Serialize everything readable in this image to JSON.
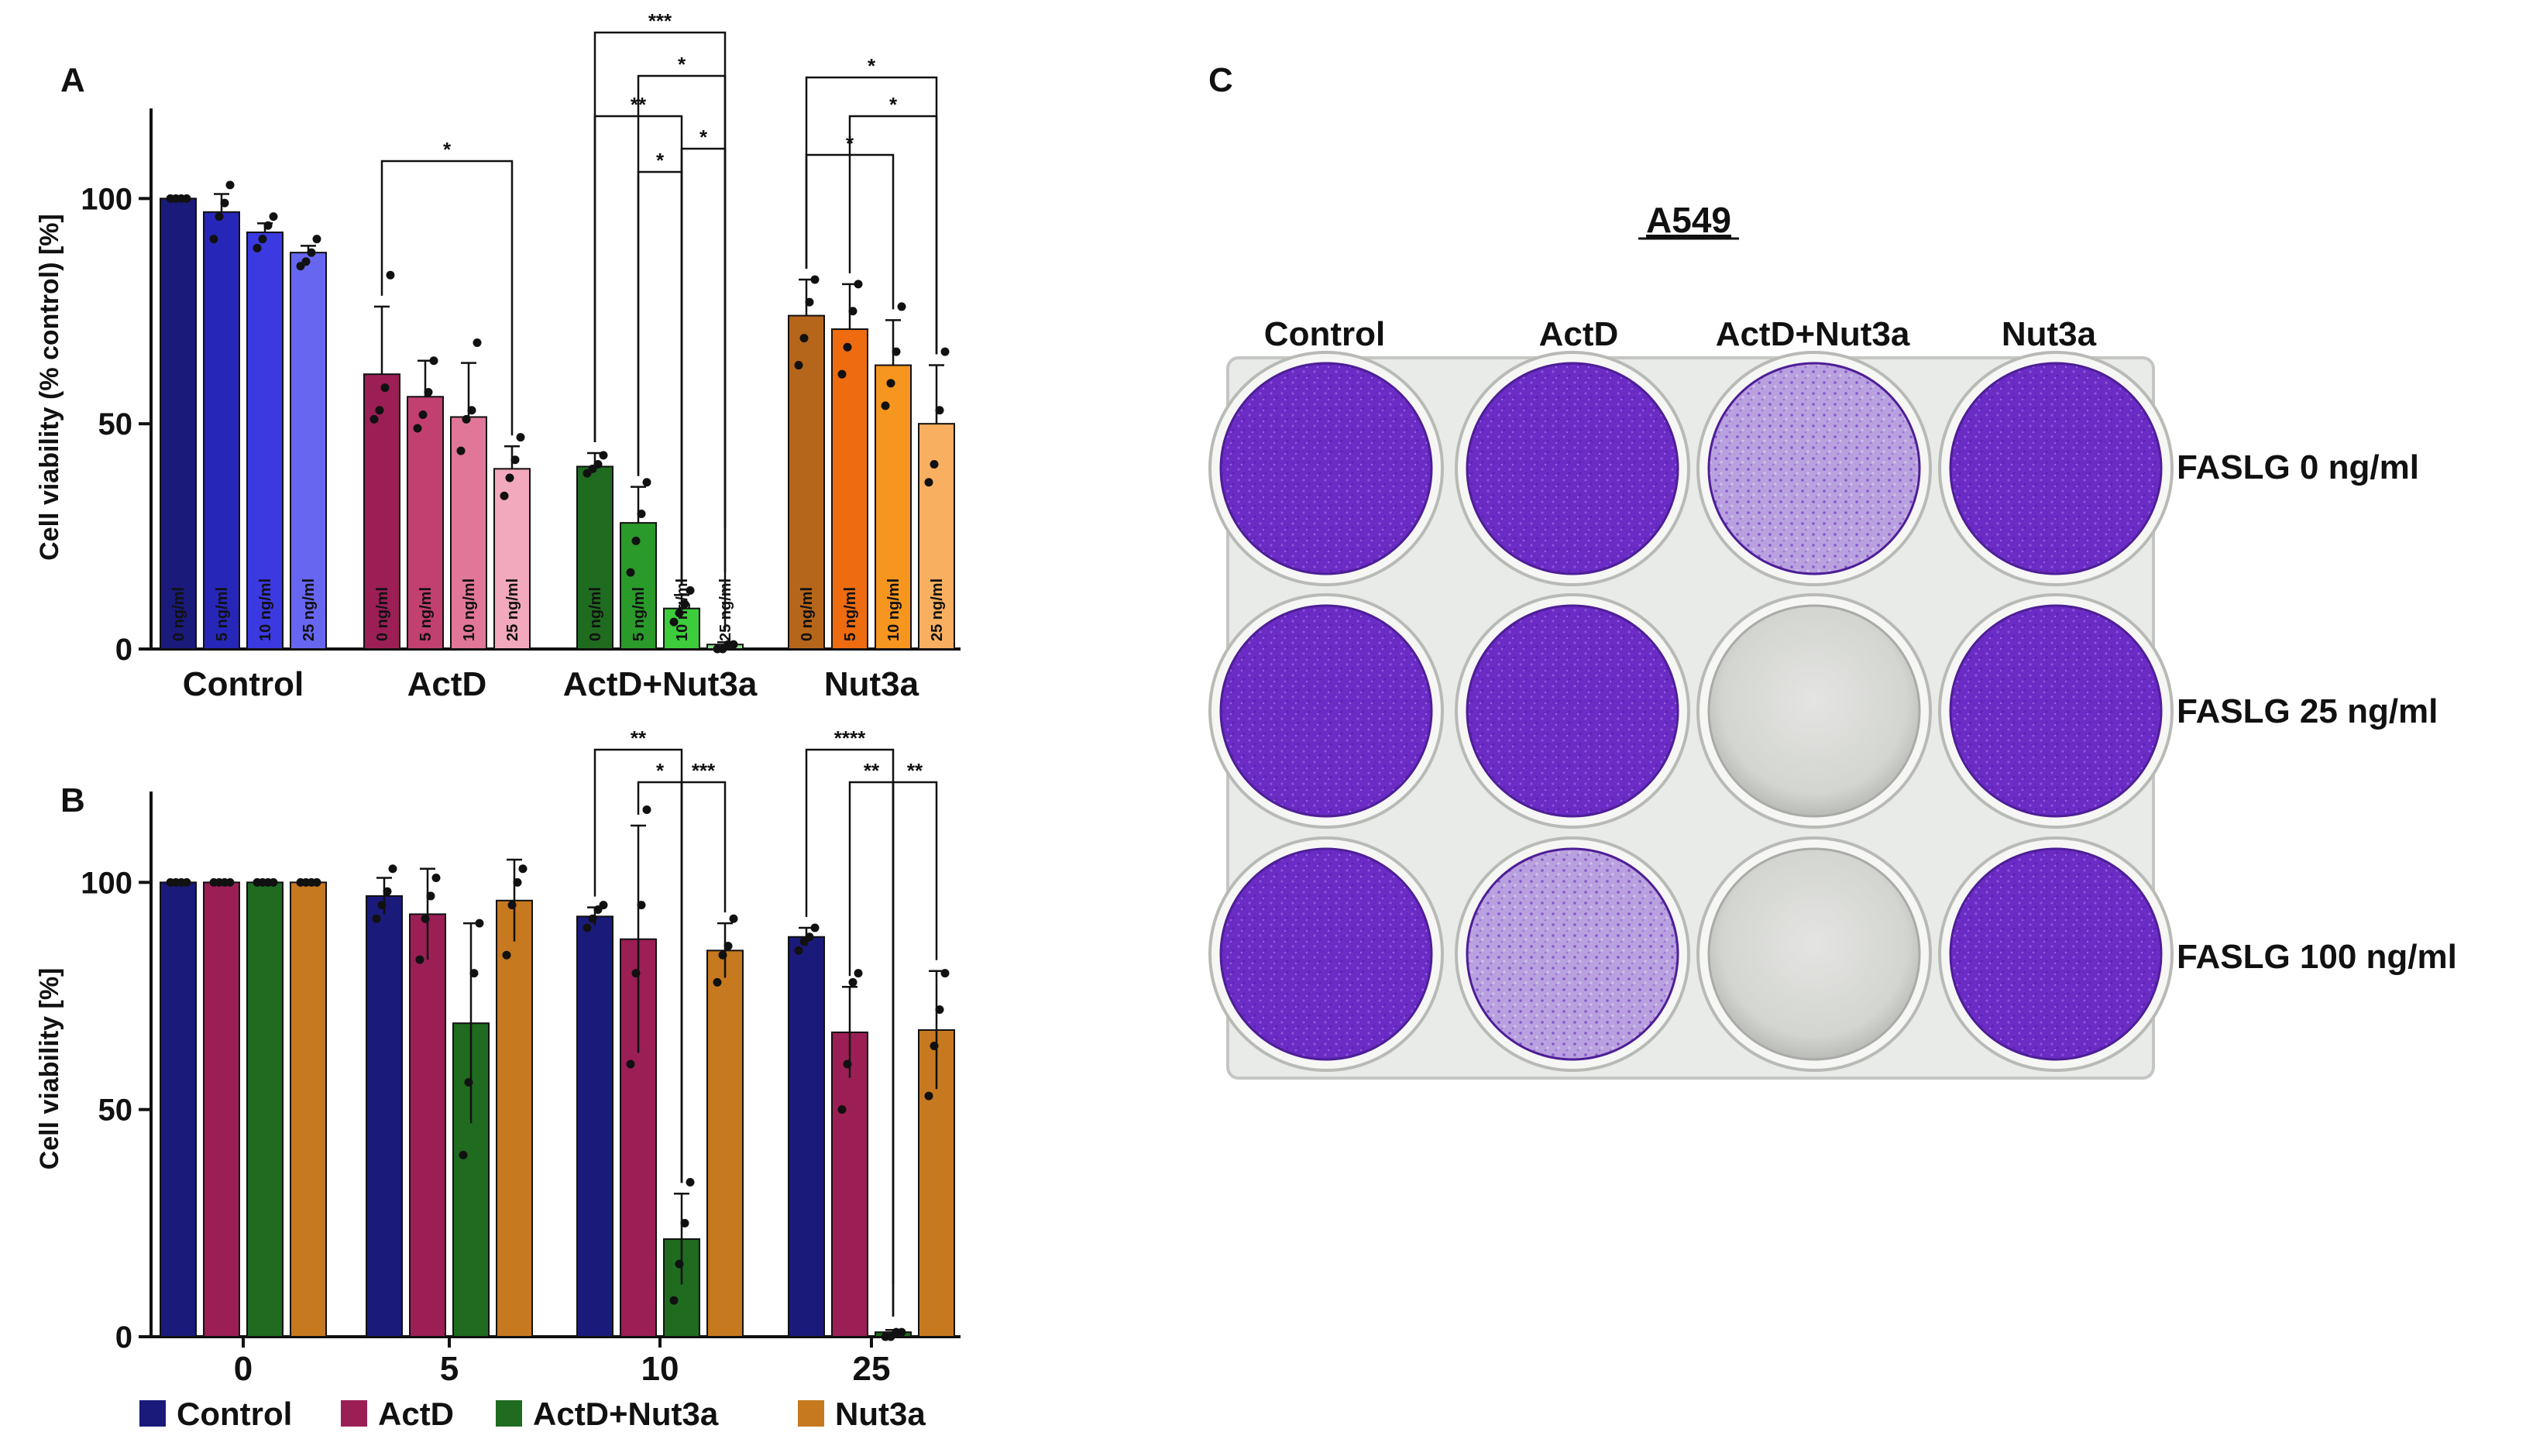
{
  "panel_labels": {
    "a": "A",
    "b": "B",
    "c": "C"
  },
  "colors": {
    "control": [
      "#1a1a7a",
      "#2626b8",
      "#3a3ae0",
      "#6666f0"
    ],
    "actd": [
      "#9b1f55",
      "#c2406f",
      "#e17798",
      "#f2a9bd"
    ],
    "actd_nut3a": [
      "#1f6b1f",
      "#2a9a2a",
      "#3ccc3c",
      "#8fe08f"
    ],
    "nut3a": [
      "#b5661a",
      "#ee6b10",
      "#f7961e",
      "#f8b060"
    ],
    "legend": [
      "#1a1a7a",
      "#9b1f55",
      "#1f6b1f",
      "#c7791f"
    ],
    "well_purple": "#6a2fc4",
    "well_light": "#a987d8",
    "well_clear": "#d8d9d6"
  },
  "chart_data": [
    {
      "panel": "A",
      "type": "bar",
      "ylabel": "Cell viability (% control) [%]",
      "ylim": [
        0,
        120
      ],
      "yticks": [
        "0",
        "50",
        "100"
      ],
      "groups": [
        "Control",
        "ActD",
        "ActD+Nut3a",
        "Nut3a"
      ],
      "bar_labels": [
        [
          "0 ng/ml",
          "5 ng/ml",
          "10 ng/ml",
          "25 ng/ml"
        ],
        [
          "0 ng/ml",
          "5 ng/ml",
          "10 ng/ml",
          "25 ng/ml"
        ],
        [
          "0 ng/ml",
          "5 ng/ml",
          "10 ng/ml",
          "25 ng/ml"
        ],
        [
          "0 ng/ml",
          "5 ng/ml",
          "10 ng/ml",
          "25 ng/ml"
        ]
      ],
      "values": [
        [
          100,
          97,
          92.5,
          88
        ],
        [
          61,
          56,
          51.5,
          40
        ],
        [
          40.5,
          28,
          9,
          1
        ],
        [
          74,
          71,
          63,
          50
        ]
      ],
      "errors": [
        [
          0,
          4,
          2,
          1.5
        ],
        [
          15,
          8,
          12,
          5
        ],
        [
          3,
          8,
          3,
          0.5
        ],
        [
          8,
          10,
          10,
          13
        ]
      ],
      "points": [
        [
          [
            100,
            100,
            100,
            100
          ],
          [
            91,
            96,
            99,
            103
          ],
          [
            89,
            91,
            94,
            96
          ],
          [
            85,
            86,
            88,
            91
          ]
        ],
        [
          [
            51,
            53,
            58,
            83
          ],
          [
            49,
            52,
            57,
            64
          ],
          [
            44,
            51,
            53,
            68
          ],
          [
            34,
            38,
            42,
            47
          ]
        ],
        [
          [
            39,
            40,
            41,
            43
          ],
          [
            17,
            24,
            30,
            37
          ],
          [
            6,
            8,
            10,
            13
          ],
          [
            0,
            0,
            1,
            1
          ]
        ],
        [
          [
            63,
            69,
            77,
            82
          ],
          [
            61,
            67,
            75,
            81
          ],
          [
            54,
            59,
            66,
            76
          ],
          [
            37,
            41,
            53,
            66
          ]
        ]
      ],
      "significance": [
        {
          "label": "*",
          "from": [
            1,
            0
          ],
          "to": [
            1,
            3
          ]
        },
        {
          "label": "***",
          "from": [
            2,
            0
          ],
          "to": [
            2,
            3
          ]
        },
        {
          "label": "*",
          "from": [
            2,
            1
          ],
          "to": [
            2,
            3
          ]
        },
        {
          "label": "**",
          "from": [
            2,
            0
          ],
          "to": [
            2,
            2
          ]
        },
        {
          "label": "*",
          "from": [
            2,
            1
          ],
          "to": [
            2,
            2
          ]
        },
        {
          "label": "*",
          "from": [
            2,
            2
          ],
          "to": [
            2,
            3
          ]
        },
        {
          "label": "*",
          "from": [
            3,
            0
          ],
          "to": [
            3,
            3
          ]
        },
        {
          "label": "*",
          "from": [
            3,
            1
          ],
          "to": [
            3,
            3
          ]
        },
        {
          "label": "*",
          "from": [
            3,
            0
          ],
          "to": [
            3,
            2
          ]
        }
      ]
    },
    {
      "panel": "B",
      "type": "bar",
      "ylabel": "Cell viability [%]",
      "ylim": [
        0,
        120
      ],
      "yticks": [
        "0",
        "50",
        "100"
      ],
      "categories": [
        "0",
        "5",
        "10",
        "25"
      ],
      "series": [
        {
          "name": "Control",
          "values": [
            100,
            97,
            92.5,
            88
          ],
          "errors": [
            0,
            4,
            2,
            2
          ]
        },
        {
          "name": "ActD",
          "values": [
            100,
            93,
            87.5,
            67
          ],
          "errors": [
            0,
            10,
            25,
            10
          ]
        },
        {
          "name": "ActD+Nut3a",
          "values": [
            100,
            69,
            21.5,
            1
          ],
          "errors": [
            0,
            22,
            10,
            0.5
          ]
        },
        {
          "name": "Nut3a",
          "values": [
            100,
            96,
            85,
            67.5
          ],
          "errors": [
            0,
            9,
            6,
            13
          ]
        }
      ],
      "points": [
        [
          [
            100,
            100,
            100,
            100
          ],
          [
            92,
            95,
            98,
            103
          ],
          [
            90,
            92,
            94,
            95
          ],
          [
            85,
            87,
            88,
            90
          ]
        ],
        [
          [
            100,
            100,
            100,
            100
          ],
          [
            83,
            92,
            97,
            101
          ],
          [
            60,
            80,
            95,
            116
          ],
          [
            50,
            60,
            78,
            80
          ]
        ],
        [
          [
            100,
            100,
            100,
            100
          ],
          [
            40,
            56,
            80,
            91
          ],
          [
            8,
            16,
            25,
            34
          ],
          [
            0,
            0,
            1,
            1
          ]
        ],
        [
          [
            100,
            100,
            100,
            100
          ],
          [
            84,
            95,
            100,
            103
          ],
          [
            78,
            84,
            86,
            92
          ],
          [
            53,
            64,
            72,
            80
          ]
        ]
      ],
      "significance": [
        {
          "label": "**",
          "from": [
            2,
            0
          ],
          "to": [
            2,
            2
          ]
        },
        {
          "label": "*",
          "from": [
            2,
            1
          ],
          "to": [
            2,
            2
          ]
        },
        {
          "label": "***",
          "from": [
            2,
            2
          ],
          "to": [
            2,
            3
          ]
        },
        {
          "label": "****",
          "from": [
            3,
            0
          ],
          "to": [
            3,
            2
          ]
        },
        {
          "label": "**",
          "from": [
            3,
            1
          ],
          "to": [
            3,
            2
          ]
        },
        {
          "label": "**",
          "from": [
            3,
            2
          ],
          "to": [
            3,
            3
          ]
        }
      ],
      "legend": [
        "Control",
        "ActD",
        "ActD+Nut3a",
        "Nut3a"
      ]
    }
  ],
  "photo": {
    "title": "A549",
    "columns": [
      "Control",
      "ActD",
      "ActD+Nut3a",
      "Nut3a"
    ],
    "rows": [
      "FASLG 0 ng/ml",
      "FASLG 25 ng/ml",
      "FASLG 100 ng/ml"
    ],
    "well_state": [
      [
        "purple",
        "purple",
        "light",
        "purple"
      ],
      [
        "purple",
        "purple",
        "clear",
        "purple"
      ],
      [
        "purple",
        "light",
        "clear",
        "purple"
      ]
    ]
  }
}
